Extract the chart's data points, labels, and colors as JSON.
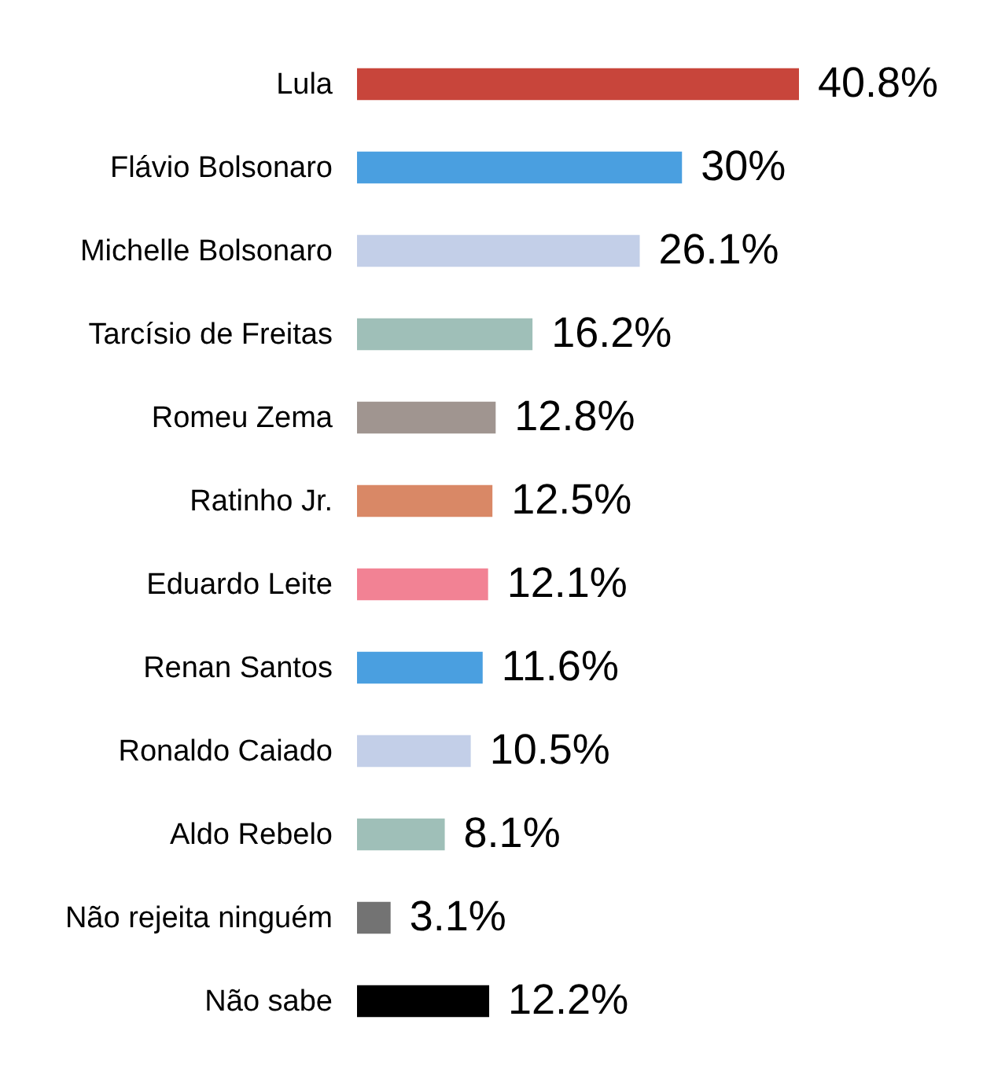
{
  "chart_data": {
    "type": "bar",
    "orientation": "horizontal",
    "categories": [
      "Lula",
      "Flávio Bolsonaro",
      "Michelle Bolsonaro",
      "Tarcísio de Freitas",
      "Romeu Zema",
      "Ratinho Jr.",
      "Eduardo Leite",
      "Renan Santos",
      "Ronaldo Caiado",
      "Aldo Rebelo",
      "Não rejeita ninguém",
      "Não sabe"
    ],
    "values": [
      40.8,
      30,
      26.1,
      16.2,
      12.8,
      12.5,
      12.1,
      11.6,
      10.5,
      8.1,
      3.1,
      12.2
    ],
    "colors": [
      "#c8453b",
      "#4a9fe0",
      "#c3cfe8",
      "#9fbfb8",
      "#a09590",
      "#d98866",
      "#f28294",
      "#4a9fe0",
      "#c3cfe8",
      "#9fbfb8",
      "#737373",
      "#000000"
    ],
    "value_labels": [
      "40.8%",
      "30%",
      "26.1%",
      "16.2%",
      "12.8%",
      "12.5%",
      "12.1%",
      "11.6%",
      "10.5%",
      "8.1%",
      "3.1%",
      "12.2%"
    ]
  }
}
